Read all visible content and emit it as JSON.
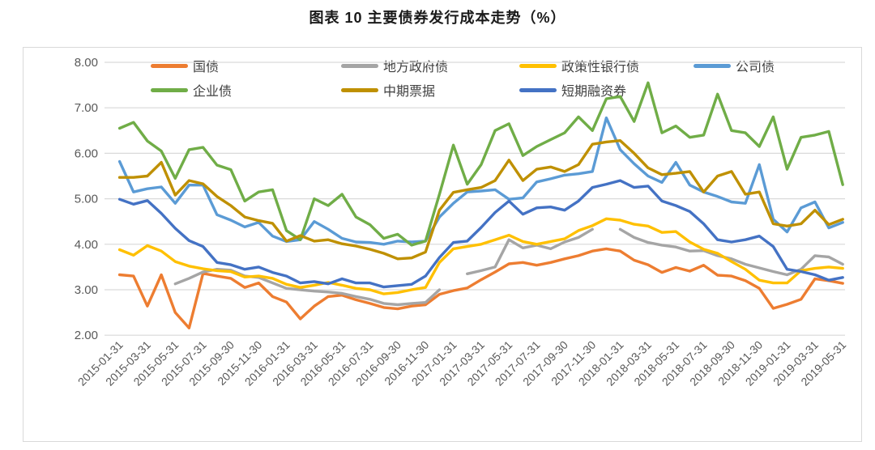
{
  "page": {
    "title": "图表 10 主要债券发行成本走势（%）"
  },
  "chart_data": {
    "type": "line",
    "title": "图表 10 主要债券发行成本走势（%）",
    "ylabel": "",
    "xlabel": "",
    "ylim": [
      2.0,
      8.0
    ],
    "grid": "horizontal",
    "legend_position": "top",
    "y_ticks": [
      "8.00",
      "7.00",
      "6.00",
      "5.00",
      "4.00",
      "3.00",
      "2.00"
    ],
    "y_tick_values": [
      8,
      7,
      6,
      5,
      4,
      3,
      2
    ],
    "n_points": 53,
    "x_tick_step": 2,
    "x_tick_labels": [
      "2015-01-31",
      "2015-03-31",
      "2015-05-31",
      "2015-07-31",
      "2015-09-30",
      "2015-11-30",
      "2016-01-31",
      "2016-03-31",
      "2016-05-31",
      "2016-07-31",
      "2016-09-30",
      "2016-11-30",
      "2017-01-31",
      "2017-03-31",
      "2017-05-31",
      "2017-07-31",
      "2017-09-30",
      "2017-11-30",
      "2018-01-31",
      "2018-03-31",
      "2018-05-31",
      "2018-07-31",
      "2018-09-30",
      "2018-11-30",
      "2019-01-31",
      "2019-03-31",
      "2019-05-31"
    ],
    "series": [
      {
        "name": "国债",
        "color": "#ED7D31",
        "legend_row": 0,
        "values": [
          3.33,
          3.3,
          2.64,
          3.33,
          2.5,
          2.16,
          3.36,
          3.3,
          3.25,
          3.05,
          3.15,
          2.85,
          2.73,
          2.36,
          2.64,
          2.85,
          2.88,
          2.78,
          2.7,
          2.61,
          2.58,
          2.64,
          2.67,
          2.9,
          2.98,
          3.04,
          3.22,
          3.39,
          3.57,
          3.6,
          3.54,
          3.6,
          3.68,
          3.75,
          3.85,
          3.9,
          3.85,
          3.65,
          3.55,
          3.38,
          3.49,
          3.41,
          3.54,
          3.32,
          3.3,
          3.2,
          3.03,
          2.59,
          2.68,
          2.79,
          3.24,
          3.2,
          3.14
        ]
      },
      {
        "name": "地方政府债",
        "color": "#A5A5A5",
        "legend_row": 0,
        "values": [
          null,
          null,
          null,
          null,
          3.13,
          3.25,
          3.39,
          3.45,
          3.43,
          3.3,
          3.27,
          3.15,
          3.03,
          3.0,
          2.97,
          2.95,
          2.92,
          2.85,
          2.79,
          2.7,
          2.67,
          2.7,
          2.72,
          3.0,
          null,
          3.35,
          3.42,
          3.5,
          4.1,
          3.92,
          3.98,
          3.9,
          4.05,
          4.15,
          4.33,
          null,
          4.33,
          4.15,
          4.04,
          3.98,
          3.94,
          3.85,
          3.86,
          3.75,
          3.68,
          3.56,
          3.48,
          3.4,
          3.33,
          3.45,
          3.75,
          3.72,
          3.56
        ]
      },
      {
        "name": "政策性银行债",
        "color": "#FFC000",
        "legend_row": 0,
        "values": [
          3.88,
          3.76,
          3.97,
          3.85,
          3.62,
          3.52,
          3.46,
          3.42,
          3.4,
          3.28,
          3.3,
          3.25,
          3.12,
          3.05,
          3.1,
          3.16,
          3.1,
          3.03,
          3.0,
          2.91,
          2.94,
          3.0,
          3.05,
          3.6,
          3.9,
          3.95,
          4.0,
          4.1,
          4.2,
          4.06,
          4.0,
          4.06,
          4.12,
          4.3,
          4.41,
          4.56,
          4.53,
          4.44,
          4.4,
          4.26,
          4.28,
          4.05,
          3.89,
          3.8,
          3.62,
          3.45,
          3.21,
          3.15,
          3.15,
          3.42,
          3.47,
          3.5,
          3.47
        ]
      },
      {
        "name": "公司债",
        "color": "#5B9BD5",
        "legend_row": 0,
        "values": [
          5.82,
          5.15,
          5.22,
          5.26,
          4.9,
          5.3,
          5.3,
          4.65,
          4.53,
          4.38,
          4.48,
          4.18,
          4.06,
          4.1,
          4.5,
          4.33,
          4.13,
          4.05,
          4.04,
          4.0,
          4.07,
          4.05,
          4.07,
          4.6,
          4.9,
          5.15,
          5.17,
          5.2,
          4.99,
          5.02,
          5.37,
          5.44,
          5.52,
          5.55,
          5.6,
          6.78,
          6.08,
          5.77,
          5.5,
          5.36,
          5.8,
          5.3,
          5.15,
          5.05,
          4.93,
          4.9,
          5.75,
          4.55,
          4.27,
          4.8,
          4.93,
          4.36,
          4.48
        ]
      },
      {
        "name": "企业债",
        "color": "#70AD47",
        "legend_row": 1,
        "values": [
          6.55,
          6.68,
          6.27,
          6.05,
          5.45,
          6.08,
          6.13,
          5.74,
          5.64,
          4.95,
          5.15,
          5.2,
          4.3,
          4.1,
          5.0,
          4.85,
          5.1,
          4.6,
          4.43,
          4.13,
          4.22,
          3.98,
          4.07,
          5.1,
          6.18,
          5.32,
          5.75,
          6.5,
          6.65,
          5.95,
          6.15,
          6.3,
          6.45,
          6.8,
          6.5,
          7.2,
          7.25,
          6.7,
          7.55,
          6.45,
          6.6,
          6.35,
          6.4,
          7.3,
          6.5,
          6.45,
          6.15,
          6.8,
          5.65,
          6.35,
          6.4,
          6.48,
          5.31
        ]
      },
      {
        "name": "中期票据",
        "color": "#BF9000",
        "legend_row": 1,
        "values": [
          5.47,
          5.47,
          5.5,
          5.8,
          5.08,
          5.4,
          5.33,
          5.05,
          4.85,
          4.6,
          4.52,
          4.46,
          4.07,
          4.19,
          4.07,
          4.1,
          4.01,
          3.96,
          3.89,
          3.8,
          3.68,
          3.7,
          3.83,
          4.75,
          5.14,
          5.2,
          5.25,
          5.4,
          5.85,
          5.4,
          5.65,
          5.7,
          5.6,
          5.75,
          6.2,
          6.25,
          6.28,
          6.0,
          5.68,
          5.53,
          5.56,
          5.6,
          5.15,
          5.5,
          5.6,
          5.1,
          5.15,
          4.45,
          4.4,
          4.45,
          4.75,
          4.43,
          4.55
        ]
      },
      {
        "name": "短期融资券",
        "color": "#4472C4",
        "legend_row": 1,
        "values": [
          4.99,
          4.88,
          4.96,
          4.68,
          4.35,
          4.08,
          3.95,
          3.6,
          3.55,
          3.45,
          3.5,
          3.38,
          3.3,
          3.15,
          3.18,
          3.13,
          3.24,
          3.15,
          3.15,
          3.06,
          3.09,
          3.12,
          3.3,
          3.71,
          4.04,
          4.07,
          4.37,
          4.7,
          4.95,
          4.66,
          4.8,
          4.82,
          4.75,
          4.95,
          5.25,
          5.32,
          5.4,
          5.25,
          5.28,
          4.95,
          4.85,
          4.72,
          4.45,
          4.1,
          4.05,
          4.1,
          4.18,
          3.95,
          3.45,
          3.4,
          3.33,
          3.21,
          3.27
        ]
      }
    ]
  }
}
